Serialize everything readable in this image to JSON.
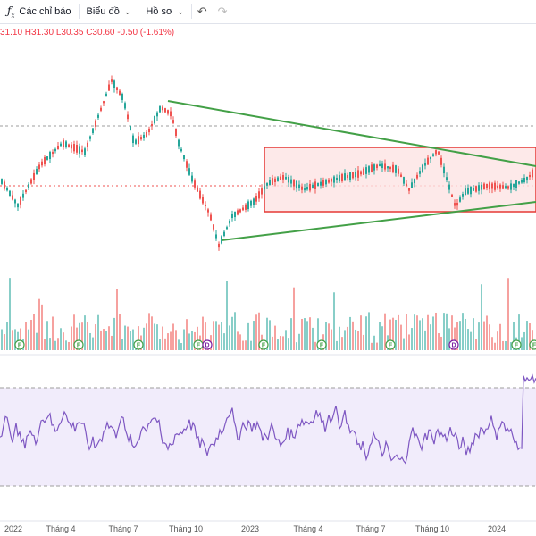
{
  "toolbar": {
    "indicators_label": "Các chỉ báo",
    "chart_type_label": "Biểu đồ",
    "profile_label": "Hồ sơ"
  },
  "ohlc_text": "31.10 H31.30 L30.35 C30.60 -0.50 (-1.61%)",
  "colors": {
    "up": "#26a69a",
    "down": "#ef5350",
    "trend": "#43a047",
    "range_border": "#e53935",
    "range_fill": "#fde4e4",
    "rsi_line": "#7e57c2",
    "rsi_band": "#f1ecfb"
  },
  "chart_data": [
    {
      "type": "candlestick",
      "x_ticks": [
        "2022",
        "Tháng 4",
        "Tháng 7",
        "Tháng 10",
        "2023",
        "Tháng 4",
        "Tháng 7",
        "Tháng 10",
        "2024"
      ],
      "range_box": {
        "from": "2023-01",
        "to": "2024-03",
        "top_frac": 0.23,
        "bottom_frac": 0.6
      },
      "trendlines": [
        {
          "from": "2022-08",
          "to": "2024-03",
          "start_frac": 0.0,
          "end_frac": 0.32
        },
        {
          "from": "2022-11",
          "to": "2024-03",
          "start_frac": 0.0,
          "end_frac": 0.62
        }
      ],
      "grid": false
    },
    {
      "type": "bar",
      "name": "volume",
      "event_markers": [
        "F",
        "F",
        "F",
        "F",
        "D",
        "F",
        "F",
        "F",
        "D",
        "F",
        "F"
      ]
    },
    {
      "type": "line",
      "name": "RSI",
      "ylim": [
        0,
        100
      ],
      "bands": [
        70,
        30
      ]
    }
  ]
}
